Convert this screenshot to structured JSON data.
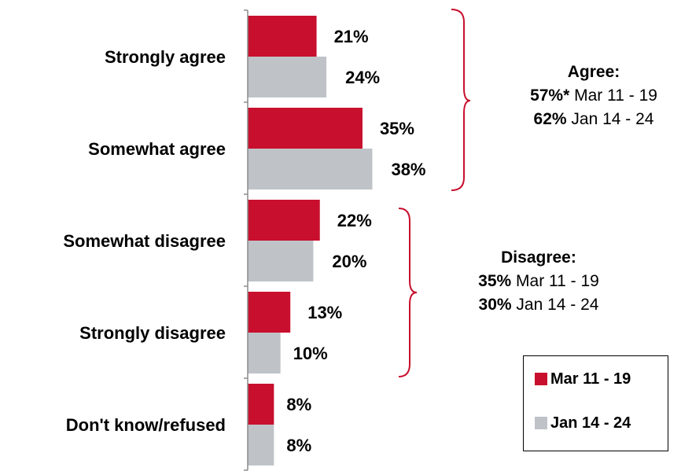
{
  "chart_data": {
    "type": "bar",
    "orientation": "horizontal",
    "categories": [
      "Strongly agree",
      "Somewhat agree",
      "Somewhat disagree",
      "Strongly disagree",
      "Don't know/refused"
    ],
    "series": [
      {
        "name": "Mar 11 - 19",
        "values": [
          21,
          35,
          22,
          13,
          8
        ],
        "color": "#c8102e"
      },
      {
        "name": "Jan 14 - 24",
        "values": [
          24,
          38,
          20,
          10,
          8
        ],
        "color": "#bfc3c8"
      }
    ],
    "value_suffix": "%",
    "xlim": [
      0,
      100
    ],
    "grid": false,
    "legend_position": "bottom-right"
  },
  "labels": {
    "cat_0": "Strongly agree",
    "cat_1": "Somewhat agree",
    "cat_2": "Somewhat disagree",
    "cat_3": "Strongly disagree",
    "cat_4": "Don't know/refused"
  },
  "annotations": {
    "agree": {
      "title": "Agree:",
      "line1_value": "57%*",
      "line1_period": "Mar 11 - 19",
      "line2_value": "62%",
      "line2_period": "Jan 14 - 24"
    },
    "disagree": {
      "title": "Disagree:",
      "line1_value": "35%",
      "line1_period": "Mar 11 - 19",
      "line2_value": "30%",
      "line2_period": "Jan 14 - 24"
    }
  },
  "legend": {
    "item1": "Mar 11 - 19",
    "item2": "Jan 14 - 24"
  },
  "colors": {
    "mar": "#c8102e",
    "jan": "#bfc3c8",
    "bracket": "#c8102e"
  }
}
